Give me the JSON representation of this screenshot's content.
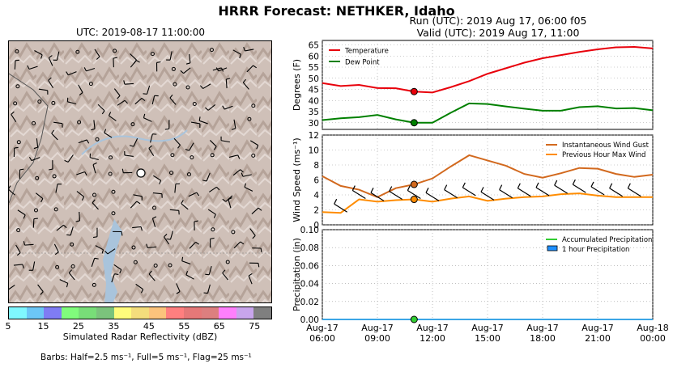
{
  "suptitle": "HRRR Forecast: NETHKER, Idaho",
  "map": {
    "title": "UTC: 2019-08-17 11:00:00"
  },
  "run": {
    "line1": "Run (UTC): 2019 Aug 17, 06:00 f05",
    "line2": "Valid (UTC): 2019 Aug 17, 11:00"
  },
  "colorbar": {
    "label": "Simulated Radar Reflectivity (dBZ)",
    "ticks": [
      "5",
      "15",
      "25",
      "35",
      "45",
      "55",
      "65",
      "75"
    ],
    "colors": [
      "#7ff7ff",
      "#6cc6f6",
      "#7f7cf4",
      "#80fc7c",
      "#78de78",
      "#7bc37c",
      "#fffc7c",
      "#f4dd7c",
      "#fcc37c",
      "#ff7f7f",
      "#e57878",
      "#dd7f7f",
      "#ff7ffc",
      "#c8a5ec",
      "#7f7f7f"
    ]
  },
  "barbs_note": "Barbs: Half=2.5 ms⁻¹, Full=5 ms⁻¹, Flag=25 ms⁻¹",
  "chart_data": [
    {
      "type": "line",
      "ylabel": "Degrees (F)",
      "ylim": [
        27,
        67
      ],
      "yticks": [
        30,
        35,
        40,
        45,
        50,
        55,
        60,
        65
      ],
      "legend": "top-left",
      "x": [
        0,
        1,
        2,
        3,
        4,
        5,
        6,
        7,
        8,
        9,
        10,
        11,
        12,
        13,
        14,
        15,
        16,
        17,
        18
      ],
      "current_x": 5,
      "series": [
        {
          "name": "Temperature",
          "color": "#e8000b",
          "values": [
            47.8,
            46.5,
            47.0,
            45.6,
            45.5,
            44.0,
            43.6,
            46.0,
            48.7,
            52.0,
            54.5,
            57.0,
            59.0,
            60.4,
            61.8,
            63.0,
            63.9,
            64.1,
            63.4
          ]
        },
        {
          "name": "Dew Point",
          "color": "#008000",
          "values": [
            31.2,
            32.0,
            32.5,
            33.5,
            31.5,
            30.0,
            30.0,
            34.5,
            38.7,
            38.4,
            37.3,
            36.3,
            35.4,
            35.4,
            37.0,
            37.4,
            36.4,
            36.6,
            35.6
          ]
        }
      ]
    },
    {
      "type": "line",
      "ylabel": "Wind Speed (ms⁻¹)",
      "ylim": [
        0,
        12
      ],
      "yticks": [
        0,
        2,
        4,
        6,
        8,
        10,
        12
      ],
      "legend": "top-right",
      "x": [
        0,
        1,
        2,
        3,
        4,
        5,
        6,
        7,
        8,
        9,
        10,
        11,
        12,
        13,
        14,
        15,
        16,
        17,
        18
      ],
      "current_x": 5,
      "series": [
        {
          "name": "Instantaneous Wind Gust",
          "color": "#d2691e",
          "values": [
            6.5,
            5.2,
            4.7,
            3.7,
            4.9,
            5.4,
            6.2,
            7.8,
            9.3,
            8.6,
            7.9,
            6.8,
            6.3,
            6.9,
            7.6,
            7.5,
            6.8,
            6.4,
            6.7
          ]
        },
        {
          "name": "Previous Hour Max Wind",
          "color": "#ff8c00",
          "values": [
            1.7,
            1.6,
            3.4,
            3.1,
            3.3,
            3.4,
            3.1,
            3.5,
            3.8,
            3.2,
            3.5,
            3.7,
            3.8,
            4.1,
            4.2,
            3.9,
            3.7,
            3.7,
            3.7
          ]
        }
      ]
    },
    {
      "type": "line",
      "ylabel": "Precipitation (in)",
      "ylim": [
        0,
        0.1
      ],
      "yticks": [
        "0.00",
        "0.02",
        "0.04",
        "0.06",
        "0.08",
        "0.10"
      ],
      "legend": "top-right",
      "x": [
        0,
        1,
        2,
        3,
        4,
        5,
        6,
        7,
        8,
        9,
        10,
        11,
        12,
        13,
        14,
        15,
        16,
        17,
        18
      ],
      "current_x": 5,
      "series": [
        {
          "name": "Accumulated Precipitation",
          "color": "#32cd32",
          "values": [
            0,
            0,
            0,
            0,
            0,
            0,
            0,
            0,
            0,
            0,
            0,
            0,
            0,
            0,
            0,
            0,
            0,
            0,
            0
          ]
        },
        {
          "name": "1 hour Precipitation",
          "color": "#1e90ff",
          "values": [
            0,
            0,
            0,
            0,
            0,
            0,
            0,
            0,
            0,
            0,
            0,
            0,
            0,
            0,
            0,
            0,
            0,
            0,
            0
          ]
        }
      ],
      "xticks": [
        {
          "top": "Aug-17",
          "bottom": "06:00"
        },
        {
          "top": "Aug-17",
          "bottom": "09:00"
        },
        {
          "top": "Aug-17",
          "bottom": "12:00"
        },
        {
          "top": "Aug-17",
          "bottom": "15:00"
        },
        {
          "top": "Aug-17",
          "bottom": "18:00"
        },
        {
          "top": "Aug-17",
          "bottom": "21:00"
        },
        {
          "top": "Aug-18",
          "bottom": "00:00"
        }
      ]
    }
  ]
}
